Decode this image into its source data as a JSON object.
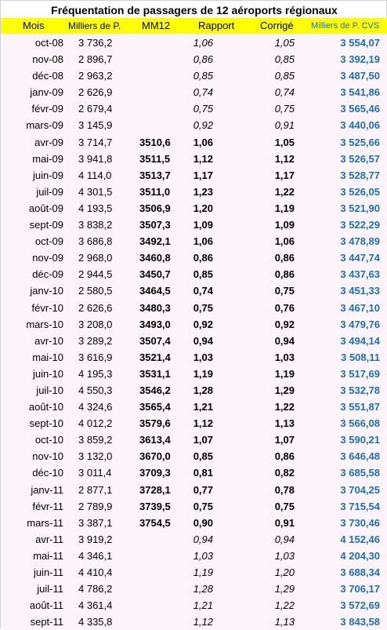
{
  "title": "Fréquentation de passagers de 12 aéroports régionaux",
  "headers": {
    "mois": "Mois",
    "milliers": "Milliers de P.",
    "mm12": "MM12",
    "rapport": "Rapport",
    "corrige": "Corrigé",
    "cvs": "Milliers de P. CVS"
  },
  "rows": [
    {
      "mois": "oct-08",
      "milliers": "3 736,2",
      "mm12": "",
      "rapport": "1,06",
      "corrige": "1,05",
      "cvs": "3 554,07",
      "style": "italic"
    },
    {
      "mois": "nov-08",
      "milliers": "2 896,7",
      "mm12": "",
      "rapport": "0,86",
      "corrige": "0,85",
      "cvs": "3 392,19",
      "style": "italic"
    },
    {
      "mois": "déc-08",
      "milliers": "2 963,2",
      "mm12": "",
      "rapport": "0,85",
      "corrige": "0,85",
      "cvs": "3 487,50",
      "style": "italic"
    },
    {
      "mois": "janv-09",
      "milliers": "2 626,9",
      "mm12": "",
      "rapport": "0,74",
      "corrige": "0,74",
      "cvs": "3 541,86",
      "style": "italic"
    },
    {
      "mois": "févr-09",
      "milliers": "2 679,4",
      "mm12": "",
      "rapport": "0,75",
      "corrige": "0,75",
      "cvs": "3 565,46",
      "style": "italic"
    },
    {
      "mois": "mars-09",
      "milliers": "3 145,9",
      "mm12": "",
      "rapport": "0,92",
      "corrige": "0,91",
      "cvs": "3 440,06",
      "style": "italic"
    },
    {
      "mois": "avr-09",
      "milliers": "3 714,7",
      "mm12": "3510,6",
      "rapport": "1,06",
      "corrige": "1,05",
      "cvs": "3 525,66",
      "style": "bold"
    },
    {
      "mois": "mai-09",
      "milliers": "3 941,8",
      "mm12": "3511,5",
      "rapport": "1,12",
      "corrige": "1,12",
      "cvs": "3 526,57",
      "style": "bold"
    },
    {
      "mois": "juin-09",
      "milliers": "4 114,0",
      "mm12": "3513,7",
      "rapport": "1,17",
      "corrige": "1,17",
      "cvs": "3 528,77",
      "style": "bold"
    },
    {
      "mois": "juil-09",
      "milliers": "4 301,5",
      "mm12": "3511,0",
      "rapport": "1,23",
      "corrige": "1,22",
      "cvs": "3 526,05",
      "style": "bold"
    },
    {
      "mois": "août-09",
      "milliers": "4 193,5",
      "mm12": "3506,9",
      "rapport": "1,20",
      "corrige": "1,19",
      "cvs": "3 521,90",
      "style": "bold"
    },
    {
      "mois": "sept-09",
      "milliers": "3 838,2",
      "mm12": "3507,3",
      "rapport": "1,09",
      "corrige": "1,09",
      "cvs": "3 522,29",
      "style": "bold"
    },
    {
      "mois": "oct-09",
      "milliers": "3 686,8",
      "mm12": "3492,1",
      "rapport": "1,06",
      "corrige": "1,06",
      "cvs": "3 478,89",
      "style": "bold"
    },
    {
      "mois": "nov-09",
      "milliers": "2 968,0",
      "mm12": "3460,8",
      "rapport": "0,86",
      "corrige": "0,86",
      "cvs": "3 447,74",
      "style": "bold"
    },
    {
      "mois": "déc-09",
      "milliers": "2 944,5",
      "mm12": "3450,7",
      "rapport": "0,85",
      "corrige": "0,86",
      "cvs": "3 437,63",
      "style": "bold"
    },
    {
      "mois": "janv-10",
      "milliers": "2 580,5",
      "mm12": "3464,5",
      "rapport": "0,74",
      "corrige": "0,75",
      "cvs": "3 451,33",
      "style": "bold"
    },
    {
      "mois": "févr-10",
      "milliers": "2 626,6",
      "mm12": "3480,3",
      "rapport": "0,75",
      "corrige": "0,76",
      "cvs": "3 467,10",
      "style": "bold"
    },
    {
      "mois": "mars-10",
      "milliers": "3 208,0",
      "mm12": "3493,0",
      "rapport": "0,92",
      "corrige": "0,92",
      "cvs": "3 479,76",
      "style": "bold"
    },
    {
      "mois": "avr-10",
      "milliers": "3 289,2",
      "mm12": "3507,4",
      "rapport": "0,94",
      "corrige": "0,94",
      "cvs": "3 494,14",
      "style": "bold"
    },
    {
      "mois": "mai-10",
      "milliers": "3 616,9",
      "mm12": "3521,4",
      "rapport": "1,03",
      "corrige": "1,03",
      "cvs": "3 508,11",
      "style": "bold"
    },
    {
      "mois": "juin-10",
      "milliers": "4 195,3",
      "mm12": "3531,1",
      "rapport": "1,19",
      "corrige": "1,19",
      "cvs": "3 517,69",
      "style": "bold"
    },
    {
      "mois": "juil-10",
      "milliers": "4 550,3",
      "mm12": "3546,2",
      "rapport": "1,28",
      "corrige": "1,29",
      "cvs": "3 532,78",
      "style": "bold"
    },
    {
      "mois": "août-10",
      "milliers": "4 324,6",
      "mm12": "3565,4",
      "rapport": "1,21",
      "corrige": "1,22",
      "cvs": "3 551,87",
      "style": "bold"
    },
    {
      "mois": "sept-10",
      "milliers": "4 012,2",
      "mm12": "3579,6",
      "rapport": "1,12",
      "corrige": "1,13",
      "cvs": "3 566,08",
      "style": "bold"
    },
    {
      "mois": "oct-10",
      "milliers": "3 859,2",
      "mm12": "3613,4",
      "rapport": "1,07",
      "corrige": "1,07",
      "cvs": "3 590,21",
      "style": "bold"
    },
    {
      "mois": "nov-10",
      "milliers": "3 132,0",
      "mm12": "3670,0",
      "rapport": "0,85",
      "corrige": "0,86",
      "cvs": "3 646,48",
      "style": "bold"
    },
    {
      "mois": "déc-10",
      "milliers": "3 011,4",
      "mm12": "3709,3",
      "rapport": "0,81",
      "corrige": "0,82",
      "cvs": "3 685,58",
      "style": "bold"
    },
    {
      "mois": "janv-11",
      "milliers": "2 877,1",
      "mm12": "3728,1",
      "rapport": "0,77",
      "corrige": "0,78",
      "cvs": "3 704,25",
      "style": "bold"
    },
    {
      "mois": "févr-11",
      "milliers": "2 789,9",
      "mm12": "3739,5",
      "rapport": "0,75",
      "corrige": "0,75",
      "cvs": "3 715,54",
      "style": "bold"
    },
    {
      "mois": "mars-11",
      "milliers": "3 387,1",
      "mm12": "3754,5",
      "rapport": "0,90",
      "corrige": "0,91",
      "cvs": "3 730,46",
      "style": "bold"
    },
    {
      "mois": "avr-11",
      "milliers": "3 919,2",
      "mm12": "",
      "rapport": "0,94",
      "corrige": "0,94",
      "cvs": "4 152,46",
      "style": "italic"
    },
    {
      "mois": "mai-11",
      "milliers": "4 346,1",
      "mm12": "",
      "rapport": "1,03",
      "corrige": "1,03",
      "cvs": "4 204,30",
      "style": "italic"
    },
    {
      "mois": "juin-11",
      "milliers": "4 410,4",
      "mm12": "",
      "rapport": "1,19",
      "corrige": "1,20",
      "cvs": "3 688,34",
      "style": "italic"
    },
    {
      "mois": "juil-11",
      "milliers": "4 786,2",
      "mm12": "",
      "rapport": "1,28",
      "corrige": "1,29",
      "cvs": "3 706,17",
      "style": "italic"
    },
    {
      "mois": "août-11",
      "milliers": "4 361,4",
      "mm12": "",
      "rapport": "1,21",
      "corrige": "1,22",
      "cvs": "3 572,69",
      "style": "italic"
    },
    {
      "mois": "sept-11",
      "milliers": "4 335,8",
      "mm12": "",
      "rapport": "1,12",
      "corrige": "1,13",
      "cvs": "3 843,58",
      "style": "italic"
    }
  ]
}
